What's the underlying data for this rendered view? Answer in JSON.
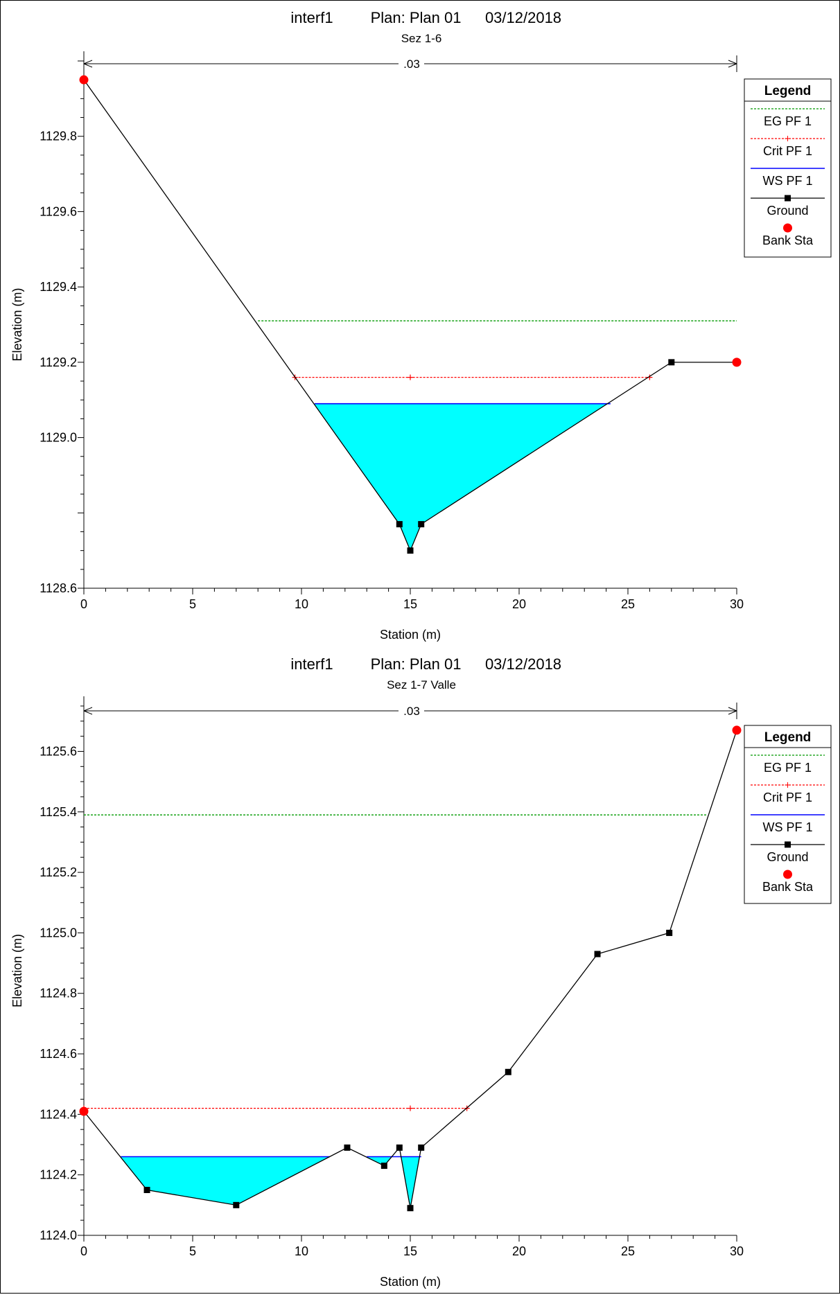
{
  "chart_data": [
    {
      "type": "line",
      "title": "interf1",
      "plan": "Plan: Plan 01",
      "date": "03/12/2018",
      "subtitle": "Sez 1-6",
      "xlabel": "Station (m)",
      "ylabel": "Elevation (m)",
      "xlim": [
        0,
        30
      ],
      "ylim": [
        1128.6,
        1130.0
      ],
      "xticks": [
        "0",
        "5",
        "10",
        "15",
        "20",
        "25",
        "30"
      ],
      "yticks": [
        "1128.6",
        "1129.0",
        "1129.2",
        "1129.4",
        "1129.6",
        "1129.8"
      ],
      "ytick_values": [
        1128.6,
        1129.0,
        1129.2,
        1129.4,
        1129.6,
        1129.8
      ],
      "manning_label": ".03",
      "manning_range": [
        0,
        30
      ],
      "legend": {
        "title": "Legend",
        "position": "top-right",
        "entries": [
          "EG PF 1",
          "Crit PF 1",
          "WS PF 1",
          "Ground",
          "Bank Sta"
        ]
      },
      "colors": {
        "eg": "#009900",
        "crit": "#ff0000",
        "ws": "#0000ff",
        "water": "#00ffff",
        "ground": "#000000",
        "bank": "#ff0000"
      },
      "series": [
        {
          "name": "EG PF 1",
          "x": [
            8.0,
            30.0
          ],
          "y": [
            1129.31,
            1129.31
          ]
        },
        {
          "name": "Crit PF 1",
          "x": [
            9.7,
            15.0,
            26.0
          ],
          "y": [
            1129.16,
            1129.16,
            1129.16
          ]
        },
        {
          "name": "WS PF 1",
          "x": [
            10.6,
            24.2
          ],
          "y": [
            1129.09,
            1129.09
          ]
        },
        {
          "name": "Ground",
          "x": [
            0,
            14.5,
            15.0,
            15.5,
            27.0,
            30.0
          ],
          "y": [
            1129.95,
            1128.77,
            1128.7,
            1128.77,
            1129.2,
            1129.2
          ]
        },
        {
          "name": "Bank Sta",
          "x": [
            0,
            30.0
          ],
          "y": [
            1129.95,
            1129.2
          ]
        }
      ],
      "ground_markers": [
        1,
        2,
        3,
        4
      ]
    },
    {
      "type": "line",
      "title": "interf1",
      "plan": "Plan: Plan 01",
      "date": "03/12/2018",
      "subtitle": "Sez 1-7 Valle",
      "xlabel": "Station (m)",
      "ylabel": "Elevation (m)",
      "xlim": [
        0,
        30
      ],
      "ylim": [
        1124.0,
        1125.75
      ],
      "xticks": [
        "0",
        "5",
        "10",
        "15",
        "20",
        "25",
        "30"
      ],
      "yticks": [
        "1124.0",
        "1124.2",
        "1124.4",
        "1124.6",
        "1124.8",
        "1125.0",
        "1125.2",
        "1125.4",
        "1125.6"
      ],
      "ytick_values": [
        1124.0,
        1124.2,
        1124.4,
        1124.6,
        1124.8,
        1125.0,
        1125.2,
        1125.4,
        1125.6
      ],
      "manning_label": ".03",
      "manning_range": [
        0,
        30
      ],
      "legend": {
        "title": "Legend",
        "position": "top-right",
        "entries": [
          "EG PF 1",
          "Crit PF 1",
          "WS PF 1",
          "Ground",
          "Bank Sta"
        ]
      },
      "colors": {
        "eg": "#009900",
        "crit": "#ff0000",
        "ws": "#0000ff",
        "water": "#00ffff",
        "ground": "#000000",
        "bank": "#ff0000"
      },
      "series": [
        {
          "name": "EG PF 1",
          "x": [
            0,
            28.6
          ],
          "y": [
            1125.39,
            1125.39
          ]
        },
        {
          "name": "Crit PF 1",
          "x": [
            0,
            15.0,
            17.6
          ],
          "y": [
            1124.42,
            1124.42,
            1124.42
          ]
        },
        {
          "name": "WS PF 1",
          "x": [
            1.7,
            11.3,
            13.0,
            15.5
          ],
          "y": [
            1124.26,
            1124.26,
            1124.26,
            1124.26
          ]
        },
        {
          "name": "Ground",
          "x": [
            0,
            2.9,
            7.0,
            12.1,
            13.8,
            14.5,
            15.0,
            15.5,
            19.5,
            23.6,
            26.9,
            30.0
          ],
          "y": [
            1124.41,
            1124.15,
            1124.1,
            1124.29,
            1124.23,
            1124.29,
            1124.09,
            1124.29,
            1124.54,
            1124.93,
            1125.0,
            1125.67
          ]
        },
        {
          "name": "Bank Sta",
          "x": [
            0,
            30.0
          ],
          "y": [
            1124.41,
            1125.67
          ]
        }
      ],
      "ground_markers": [
        1,
        2,
        3,
        4,
        5,
        6,
        7,
        8,
        9,
        10
      ]
    }
  ]
}
